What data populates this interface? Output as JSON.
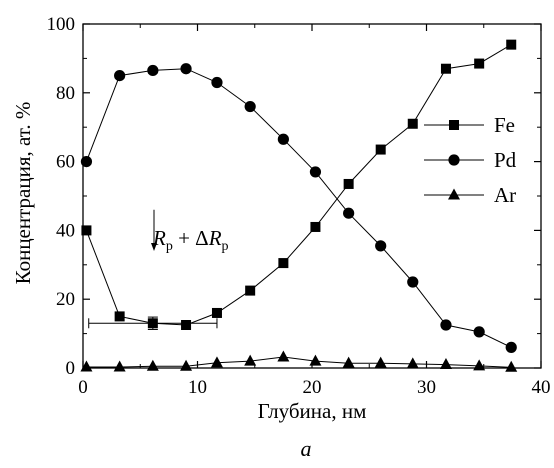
{
  "chart_data": {
    "type": "scatter",
    "xlabel": "Глубина, нм",
    "ylabel": "Концентрация, ат. %",
    "xlim": [
      0,
      40
    ],
    "ylim": [
      0,
      100
    ],
    "x_ticks": [
      0,
      10,
      20,
      30,
      40
    ],
    "y_ticks": [
      0,
      20,
      40,
      60,
      80,
      100
    ],
    "x_tick_labels": [
      "0",
      "10",
      "20",
      "30",
      "40"
    ],
    "y_tick_labels": [
      "0",
      "20",
      "40",
      "60",
      "80",
      "100"
    ],
    "grid": false,
    "legend_position": "right",
    "series": [
      {
        "name": "Fe",
        "marker": "square",
        "x": [
          0.3,
          3.2,
          6.1,
          9.0,
          11.7,
          14.6,
          17.5,
          20.3,
          23.2,
          26.0,
          28.8,
          31.7,
          34.6,
          37.4
        ],
        "y": [
          40,
          15,
          13,
          12.5,
          16,
          22.5,
          30.5,
          41,
          53.5,
          63.5,
          71,
          87,
          88.5,
          94
        ]
      },
      {
        "name": "Pd",
        "marker": "circle",
        "x": [
          0.3,
          3.2,
          6.1,
          9.0,
          11.7,
          14.6,
          17.5,
          20.3,
          23.2,
          26.0,
          28.8,
          31.7,
          34.6,
          37.4
        ],
        "y": [
          60,
          85,
          86.5,
          87,
          83,
          76,
          66.5,
          57,
          45,
          35.5,
          25,
          12.5,
          10.5,
          6
        ]
      },
      {
        "name": "Ar",
        "marker": "triangle",
        "x": [
          0.3,
          3.2,
          6.1,
          9.0,
          11.7,
          14.6,
          17.5,
          20.3,
          23.2,
          26.0,
          28.8,
          31.7,
          34.6,
          37.4
        ],
        "y": [
          0.3,
          0.3,
          0.5,
          0.5,
          1.5,
          2,
          3.2,
          2,
          1.4,
          1.4,
          1.2,
          1,
          0.6,
          0.2
        ]
      }
    ],
    "annotation": {
      "label_main": "R",
      "label_sub": "p",
      "label_mid": " + Δ",
      "label_main2": "R",
      "label_sub2": "p",
      "arrow_x": 6.2,
      "arrow_y_top": 46,
      "arrow_y_bottom": 34,
      "error_bar": {
        "x": 6.1,
        "y": 13,
        "x_min": 0.5,
        "x_max": 11.7,
        "y_err": 1.8
      }
    },
    "caption": "a"
  }
}
